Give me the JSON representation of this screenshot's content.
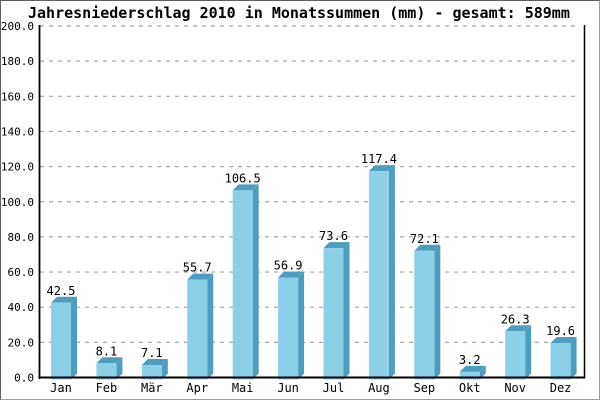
{
  "window": {
    "background": "#ffffff",
    "border_color": "#808080"
  },
  "chart_data": {
    "type": "bar",
    "title": "Jahresniederschlag 2010 in Monatssummen (mm) - gesamt: 589mm",
    "total_mm_shown_in_title": 589,
    "categories": [
      "Jan",
      "Feb",
      "Mär",
      "Apr",
      "Mai",
      "Jun",
      "Jul",
      "Aug",
      "Sep",
      "Okt",
      "Nov",
      "Dez"
    ],
    "values": [
      42.5,
      8.1,
      7.1,
      55.7,
      106.5,
      56.9,
      73.6,
      117.4,
      72.1,
      3.2,
      26.3,
      19.6
    ],
    "value_labels": [
      "42.5",
      "8.1",
      "7.1",
      "55.7",
      "106.5",
      "56.9",
      "73.6",
      "117.4",
      "72.1",
      "3.2",
      "26.3",
      "19.6"
    ],
    "xlabel": "",
    "ylabel": "",
    "ylim": [
      0,
      200
    ],
    "ytick_step": 20,
    "ytick_labels": [
      "0.0",
      "20.0",
      "40.0",
      "60.0",
      "80.0",
      "100.0",
      "120.0",
      "140.0",
      "160.0",
      "180.0",
      "200.0"
    ],
    "grid": "horizontal dashed",
    "legend_position": "none",
    "bar_style": "pseudo-3d",
    "colors": {
      "bar_face": "#8ccfe8",
      "bar_side": "#4f9dbe",
      "gridline": "#a8a8a8",
      "axis": "#000000",
      "text": "#000000"
    }
  }
}
